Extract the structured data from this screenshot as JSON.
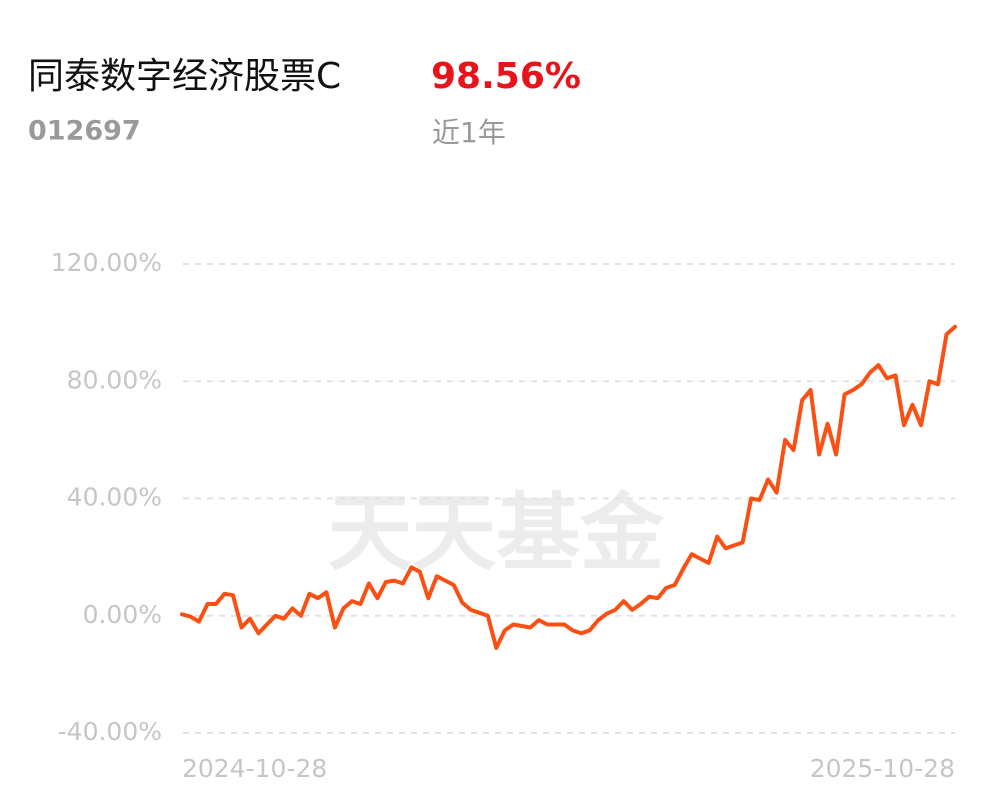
{
  "header": {
    "title": "同泰数字经济股票C",
    "return": "98.56%",
    "code": "012697",
    "period": "近1年"
  },
  "watermark": "天天基金",
  "chart_data": {
    "type": "line",
    "categories": [
      "2024-10-28",
      null,
      null,
      null,
      null,
      null,
      null,
      null,
      null,
      null,
      null,
      null,
      null,
      null,
      null,
      null,
      null,
      null,
      null,
      null,
      null,
      null,
      null,
      null,
      null,
      null,
      null,
      null,
      null,
      null,
      null,
      null,
      null,
      null,
      null,
      null,
      null,
      null,
      null,
      null,
      null,
      null,
      null,
      null,
      null,
      null,
      null,
      null,
      null,
      null,
      null,
      null,
      null,
      null,
      null,
      null,
      null,
      null,
      null,
      null,
      null,
      null,
      null,
      null,
      null,
      null,
      null,
      null,
      null,
      null,
      null,
      null,
      null,
      null,
      null,
      null,
      null,
      null,
      null,
      null,
      null,
      null,
      null,
      null,
      null,
      null,
      null,
      null,
      null,
      null,
      null,
      "2025-10-28"
    ],
    "values": [
      0.5,
      -0.3,
      -2,
      4,
      4,
      7.5,
      7,
      -4,
      -1,
      -6,
      -3,
      0,
      -1,
      2.5,
      0,
      7.5,
      6,
      8,
      -4,
      2.5,
      5,
      4,
      11,
      6,
      11.5,
      12,
      11,
      16.5,
      15,
      6,
      13.5,
      12,
      10.5,
      4.5,
      2,
      1,
      0,
      -11,
      -5,
      -3,
      -3.5,
      -4,
      -1.5,
      -3,
      -3,
      -3,
      -5,
      -6,
      -5,
      -1.5,
      0.7,
      2,
      5,
      2,
      4,
      6.5,
      6,
      9.5,
      10.5,
      16,
      21,
      19.5,
      18,
      27,
      23,
      24,
      25,
      40,
      39.5,
      46.5,
      42,
      60,
      56.5,
      73.5,
      77,
      55,
      65.5,
      55,
      75.5,
      77,
      79,
      83,
      85.5,
      81,
      82,
      65,
      72,
      65,
      80,
      79,
      96,
      98.56
    ],
    "color": "#fa5014",
    "ylim": [
      -40,
      120
    ],
    "yticks": [
      {
        "value": -40,
        "label": "-40.00%"
      },
      {
        "value": 0,
        "label": "0.00%"
      },
      {
        "value": 40,
        "label": "40.00%"
      },
      {
        "value": 80,
        "label": "80.00%"
      },
      {
        "value": 120,
        "label": "120.00%"
      }
    ],
    "grid": true
  }
}
